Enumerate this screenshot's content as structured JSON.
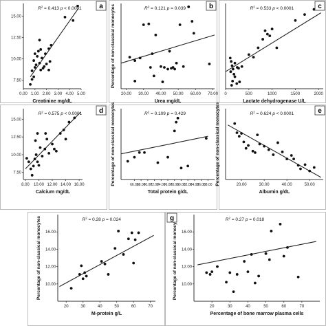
{
  "chart_data": [
    {
      "type": "scatter",
      "panel": "a",
      "xlabel": "Creatinine mg/dL",
      "ylabel": "",
      "annotation_r2": "0.413",
      "annotation_p": "< 0.0001",
      "xlim": [
        0.0,
        5.0
      ],
      "ylim": [
        6.5,
        16.5
      ],
      "xticks": [
        "0.00",
        "1.00",
        "2.00",
        "3.00",
        "4.00",
        "5.00"
      ],
      "yticks": [
        "7.50",
        "10.00",
        "12.50",
        "15.00"
      ],
      "ytick_values": [
        7.5,
        10,
        12.5,
        15
      ],
      "fit": [
        [
          0.6,
          7.9
        ],
        [
          4.75,
          15.9
        ]
      ],
      "points": [
        [
          0.6,
          7.0
        ],
        [
          0.75,
          7.6
        ],
        [
          0.9,
          7.9
        ],
        [
          0.75,
          8.6
        ],
        [
          1.0,
          9.0
        ],
        [
          1.1,
          9.3
        ],
        [
          0.9,
          9.8
        ],
        [
          1.2,
          10.3
        ],
        [
          1.3,
          10.9
        ],
        [
          1.0,
          10.6
        ],
        [
          1.4,
          9.5
        ],
        [
          1.5,
          8.7
        ],
        [
          1.7,
          8.9
        ],
        [
          1.8,
          9.1
        ],
        [
          2.0,
          9.4
        ],
        [
          2.2,
          8.7
        ],
        [
          2.3,
          9.7
        ],
        [
          1.6,
          10.1
        ],
        [
          1.9,
          10.6
        ],
        [
          2.2,
          11.2
        ],
        [
          1.4,
          12.2
        ],
        [
          1.5,
          11.1
        ],
        [
          2.4,
          11.6
        ],
        [
          3.6,
          14.9
        ],
        [
          4.3,
          14.5
        ],
        [
          4.7,
          16.2
        ]
      ]
    },
    {
      "type": "scatter",
      "panel": "b",
      "xlabel": "Urea mg/dL",
      "ylabel": "Percentage of non-classical monocytes",
      "annotation_r2": "0.121",
      "annotation_p": "= 0.039",
      "xlim": [
        17,
        71
      ],
      "ylim": [
        6.5,
        16.5
      ],
      "xticks": [
        "20.00",
        "30.00",
        "40.00",
        "50.00",
        "60.00",
        "70.00"
      ],
      "yticks": [
        "7.50",
        "10.00",
        "12.50",
        "15.00"
      ],
      "ytick_values": [
        7.5,
        10,
        12.5,
        15
      ],
      "fit": [
        [
          17,
          9.5
        ],
        [
          71,
          12.8
        ]
      ],
      "points": [
        [
          22,
          10.2
        ],
        [
          25,
          9.8
        ],
        [
          25,
          7.4
        ],
        [
          28,
          10.1
        ],
        [
          30,
          14.0
        ],
        [
          33,
          14.1
        ],
        [
          34,
          9.0
        ],
        [
          35,
          10.6
        ],
        [
          36,
          8.0
        ],
        [
          37,
          12.8
        ],
        [
          40,
          9.1
        ],
        [
          41,
          7.3
        ],
        [
          42,
          9.0
        ],
        [
          44,
          8.8
        ],
        [
          45,
          10.9
        ],
        [
          46,
          8.9
        ],
        [
          47,
          9.0
        ],
        [
          48,
          8.8
        ],
        [
          49,
          9.5
        ],
        [
          51,
          14.0
        ],
        [
          53,
          9.1
        ],
        [
          56,
          16.1
        ],
        [
          58,
          14.4
        ],
        [
          59,
          13.0
        ],
        [
          68,
          9.4
        ],
        [
          69,
          16.1
        ]
      ]
    },
    {
      "type": "scatter",
      "panel": "c",
      "xlabel": "Lactate dehydrogenase  U/L",
      "ylabel": "",
      "annotation_r2": "0.533",
      "annotation_p": "< 0.0001",
      "xlim": [
        0,
        2100
      ],
      "ylim": [
        6.5,
        16.5
      ],
      "xticks": [
        "0",
        "500",
        "1000",
        "1500",
        "2000"
      ],
      "yticks": [],
      "ytick_values": [],
      "fit": [
        [
          0,
          8.5
        ],
        [
          2050,
          15.4
        ]
      ],
      "points": [
        [
          100,
          10.1
        ],
        [
          120,
          9.7
        ],
        [
          140,
          9.2
        ],
        [
          160,
          8.8
        ],
        [
          110,
          8.5
        ],
        [
          180,
          8.2
        ],
        [
          200,
          7.9
        ],
        [
          150,
          7.4
        ],
        [
          240,
          7.1
        ],
        [
          300,
          7.3
        ],
        [
          130,
          6.9
        ],
        [
          200,
          9.5
        ],
        [
          250,
          9.0
        ],
        [
          280,
          8.9
        ],
        [
          350,
          9.1
        ],
        [
          500,
          10.5
        ],
        [
          600,
          10.2
        ],
        [
          700,
          11.3
        ],
        [
          800,
          12.3
        ],
        [
          850,
          13.3
        ],
        [
          900,
          12.9
        ],
        [
          950,
          12.7
        ],
        [
          1000,
          13.5
        ],
        [
          1100,
          11.3
        ],
        [
          1500,
          14.5
        ],
        [
          1700,
          15.2
        ],
        [
          1900,
          15.8
        ]
      ]
    },
    {
      "type": "scatter",
      "panel": "d",
      "xlabel": "Calcium mg/dL",
      "ylabel": "",
      "annotation_r2": "0.575",
      "annotation_p": "< 0.0001",
      "xlim": [
        7.7,
        16.5
      ],
      "ylim": [
        6.5,
        16.5
      ],
      "xticks": [
        "8.00",
        "10.00",
        "12.00",
        "14.00",
        "16.00"
      ],
      "yticks": [
        "7.50",
        "10.00",
        "12.50",
        "15.00"
      ],
      "ytick_values": [
        7.5,
        10,
        12.5,
        15
      ],
      "fit": [
        [
          8.0,
          8.0
        ],
        [
          16.2,
          16.0
        ]
      ],
      "points": [
        [
          8.2,
          9.5
        ],
        [
          8.5,
          9.0
        ],
        [
          8.8,
          8.0
        ],
        [
          9.0,
          7.1
        ],
        [
          9.2,
          8.4
        ],
        [
          9.4,
          9.4
        ],
        [
          9.6,
          10.0
        ],
        [
          9.8,
          9.0
        ],
        [
          10.0,
          8.5
        ],
        [
          10.2,
          11.0
        ],
        [
          9.5,
          12.0
        ],
        [
          9.8,
          13.0
        ],
        [
          10.5,
          9.8
        ],
        [
          10.9,
          10.8
        ],
        [
          11.0,
          13.0
        ],
        [
          11.2,
          12.2
        ],
        [
          11.5,
          10.2
        ],
        [
          12.0,
          11.5
        ],
        [
          12.3,
          10.8
        ],
        [
          12.6,
          10.5
        ],
        [
          13.2,
          13.0
        ],
        [
          13.7,
          13.5
        ],
        [
          14.0,
          12.2
        ],
        [
          14.5,
          14.6
        ],
        [
          15.3,
          15.2
        ]
      ]
    },
    {
      "type": "scatter",
      "panel": "",
      "xlabel": "Total protein g/dL",
      "ylabel": "Percentage of non-classical monocytes",
      "annotation_r2": "0.109",
      "annotation_p": "= 0.429",
      "xlim": [
        62,
        90
      ],
      "ylim": [
        7.0,
        17.5
      ],
      "xticks": [
        "66.00",
        "68.00",
        "70.00",
        "72.00",
        "74.00",
        "76.00",
        "78.00",
        "80.00",
        "82.00",
        "84.00",
        "86.00",
        "88.00"
      ],
      "yticks": [
        "10.00",
        "12.00",
        "14.00",
        "16.00"
      ],
      "ytick_values": [
        10,
        12,
        14,
        16
      ],
      "fit": [
        [
          62,
          10.8
        ],
        [
          88,
          13.4
        ]
      ],
      "points": [
        [
          64,
          9.7
        ],
        [
          66,
          10.3
        ],
        [
          67.5,
          11.0
        ],
        [
          69,
          11.0
        ],
        [
          73,
          9.5
        ],
        [
          76,
          10.3
        ],
        [
          78,
          14.2
        ],
        [
          78.5,
          15.5
        ],
        [
          79,
          16.1
        ],
        [
          80,
          8.7
        ],
        [
          82,
          9.0
        ],
        [
          87.5,
          13.1
        ]
      ]
    },
    {
      "type": "scatter",
      "panel": "e",
      "xlabel": "Albumin g/dL",
      "ylabel": "Percentage of non-classical monocytes",
      "annotation_r2": "0.624",
      "annotation_p": "< 0.0001",
      "xlim": [
        13,
        56
      ],
      "ylim": [
        6.5,
        16.5
      ],
      "xticks": [
        "20.00",
        "30.00",
        "40.00",
        "50.00"
      ],
      "yticks": [],
      "ytick_values": [],
      "fit": [
        [
          14,
          14.2
        ],
        [
          55,
          6.8
        ]
      ],
      "points": [
        [
          17,
          14.4
        ],
        [
          18,
          13.1
        ],
        [
          19,
          12.6
        ],
        [
          20,
          13.0
        ],
        [
          21,
          11.8
        ],
        [
          22,
          10.9
        ],
        [
          23,
          11.3
        ],
        [
          25,
          10.5
        ],
        [
          26,
          10.3
        ],
        [
          27,
          12.8
        ],
        [
          28,
          11.5
        ],
        [
          30,
          11.2
        ],
        [
          32,
          10.7
        ],
        [
          34,
          10.0
        ],
        [
          36,
          11.7
        ],
        [
          38,
          10.4
        ],
        [
          40,
          9.4
        ],
        [
          42,
          9.9
        ],
        [
          43,
          9.4
        ],
        [
          45,
          8.5
        ],
        [
          46,
          8.0
        ],
        [
          48,
          8.6
        ],
        [
          50,
          7.7
        ],
        [
          52,
          8.2
        ]
      ]
    },
    {
      "type": "scatter",
      "panel": "",
      "xlabel": "M-protein g/L",
      "ylabel": "Percentage of non-classical monocytes",
      "annotation_r2": "0.28",
      "annotation_p": "= 0.024",
      "xlim": [
        15,
        73
      ],
      "ylim": [
        8.0,
        18.0
      ],
      "xticks": [
        "20",
        "30",
        "40",
        "50",
        "60",
        "70"
      ],
      "yticks": [
        "10.00",
        "12.00",
        "14.00",
        "16.00"
      ],
      "ytick_values": [
        10,
        12,
        14,
        16
      ],
      "fit": [
        [
          16,
          9.7
        ],
        [
          72,
          15.6
        ]
      ],
      "points": [
        [
          23,
          9.5
        ],
        [
          28,
          11.1
        ],
        [
          29,
          12.1
        ],
        [
          30,
          10.6
        ],
        [
          31,
          11.3
        ],
        [
          32,
          10.9
        ],
        [
          41,
          12.6
        ],
        [
          43,
          12.3
        ],
        [
          45,
          11.1
        ],
        [
          49,
          14.1
        ],
        [
          51,
          16.1
        ],
        [
          54,
          13.4
        ],
        [
          57,
          15.2
        ],
        [
          59,
          15.9
        ],
        [
          60,
          12.4
        ],
        [
          61,
          15.1
        ],
        [
          63,
          15.9
        ]
      ]
    },
    {
      "type": "scatter",
      "panel": "g",
      "xlabel": "Percentage of bone marrow plasma cells",
      "ylabel": "Percentage of non-classical monocytes",
      "annotation_r2": "0.27",
      "annotation_p": "= 0.018",
      "xlim": [
        10,
        80
      ],
      "ylim": [
        8.0,
        18.0
      ],
      "xticks": [
        "20",
        "30",
        "40",
        "50",
        "60",
        "70"
      ],
      "yticks": [
        "10.00",
        "12.00",
        "14.00",
        "16.00"
      ],
      "ytick_values": [
        10,
        12,
        14,
        16
      ],
      "fit": [
        [
          12,
          12.2
        ],
        [
          78,
          14.9
        ]
      ],
      "points": [
        [
          17,
          11.3
        ],
        [
          19,
          11.1
        ],
        [
          20,
          11.4
        ],
        [
          23,
          12.0
        ],
        [
          28,
          10.2
        ],
        [
          30,
          11.3
        ],
        [
          32,
          9.1
        ],
        [
          34,
          11.1
        ],
        [
          38,
          12.6
        ],
        [
          40,
          11.4
        ],
        [
          42,
          13.4
        ],
        [
          44,
          10.1
        ],
        [
          46,
          10.9
        ],
        [
          50,
          13.5
        ],
        [
          52,
          12.8
        ],
        [
          53,
          16.1
        ],
        [
          58,
          16.9
        ],
        [
          60,
          13.2
        ],
        [
          62,
          14.2
        ],
        [
          68,
          10.8
        ]
      ]
    }
  ]
}
